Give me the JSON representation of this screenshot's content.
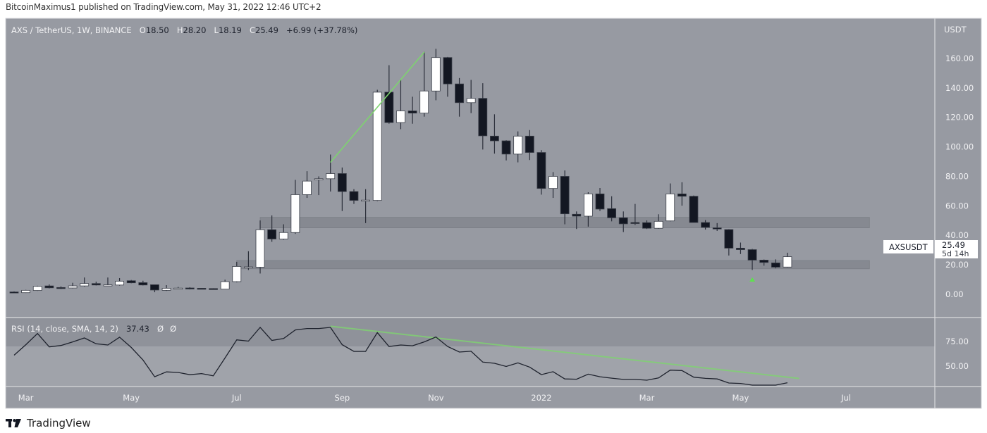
{
  "publish_line": "BitcoinMaximus1 published on TradingView.com, May 31, 2022 12:46 UTC+2",
  "legend": {
    "symbol": "AXS / TetherUS, 1W, BINANCE",
    "o_label": "O",
    "o": "18.50",
    "h_label": "H",
    "h": "28.20",
    "l_label": "L",
    "l": "18.19",
    "c_label": "C",
    "c": "25.49",
    "change": "+6.99 (+37.78%)"
  },
  "price_axis": {
    "currency": "USDT",
    "ticks": [
      "160.00",
      "140.00",
      "120.00",
      "100.00",
      "80.00",
      "60.00",
      "40.00",
      "20.00",
      "0.00"
    ],
    "symbol_tag": "AXSUSDT",
    "last_price": "25.49",
    "countdown": "5d 14h"
  },
  "rsi": {
    "legend": "RSI (14, close, SMA, 14, 2)",
    "value": "37.43",
    "extra1": "Ø",
    "extra2": "Ø",
    "ticks": [
      "75.00",
      "50.00"
    ]
  },
  "time_axis": {
    "labels": [
      {
        "text": "Mar",
        "date": "2021-03-01"
      },
      {
        "text": "May",
        "date": "2021-05-03"
      },
      {
        "text": "Jul",
        "date": "2021-07-05"
      },
      {
        "text": "Sep",
        "date": "2021-09-06"
      },
      {
        "text": "Nov",
        "date": "2021-11-01"
      },
      {
        "text": "2022",
        "date": "2022-01-03"
      },
      {
        "text": "Mar",
        "date": "2022-03-07"
      },
      {
        "text": "May",
        "date": "2022-05-02"
      },
      {
        "text": "Jul",
        "date": "2022-07-04"
      }
    ]
  },
  "footer": {
    "brand": "TradingView",
    "logo_text": "TV"
  },
  "colors": {
    "background": "#979aa2",
    "up_body": "#ffffff",
    "down_body": "#131722",
    "wick": "#2a2e39",
    "zone": "#80838b",
    "trendline": "#7ed36f",
    "rsi_line": "#1e222d"
  },
  "chart_data": [
    {
      "type": "candlestick",
      "interval": "1W",
      "ylim": [
        0,
        170
      ],
      "grid": false,
      "columns": [
        "date",
        "open",
        "high",
        "low",
        "close"
      ],
      "candles": [
        [
          "2021-02-22",
          1.6,
          2.0,
          1.0,
          1.3
        ],
        [
          "2021-03-01",
          1.1,
          3.0,
          0.9,
          2.7
        ],
        [
          "2021-03-08",
          2.6,
          5.8,
          2.3,
          5.4
        ],
        [
          "2021-03-15",
          5.7,
          6.7,
          4.0,
          4.4
        ],
        [
          "2021-03-22",
          4.6,
          5.4,
          3.6,
          4.5
        ],
        [
          "2021-03-29",
          4.3,
          7.8,
          4.0,
          5.7
        ],
        [
          "2021-04-05",
          5.7,
          11.4,
          5.2,
          7.3
        ],
        [
          "2021-04-12",
          7.3,
          8.6,
          6.0,
          6.3
        ],
        [
          "2021-04-19",
          6.3,
          11.4,
          5.9,
          6.4
        ],
        [
          "2021-04-26",
          6.3,
          11.0,
          5.9,
          8.9
        ],
        [
          "2021-05-03",
          9.2,
          9.7,
          7.5,
          7.8
        ],
        [
          "2021-05-10",
          7.9,
          9.2,
          6.0,
          6.3
        ],
        [
          "2021-05-17",
          6.5,
          6.5,
          1.4,
          2.9
        ],
        [
          "2021-05-24",
          2.7,
          6.2,
          2.3,
          4.1
        ],
        [
          "2021-05-31",
          4.1,
          5.0,
          3.8,
          4.2
        ],
        [
          "2021-06-07",
          4.3,
          4.8,
          3.3,
          3.7
        ],
        [
          "2021-06-14",
          4.1,
          4.3,
          3.6,
          3.8
        ],
        [
          "2021-06-21",
          3.9,
          4.1,
          3.2,
          3.3
        ],
        [
          "2021-06-28",
          3.5,
          9.9,
          3.4,
          8.6
        ],
        [
          "2021-07-05",
          8.6,
          22.0,
          8.1,
          18.9
        ],
        [
          "2021-07-12",
          18.4,
          29.2,
          16.5,
          18.6
        ],
        [
          "2021-07-19",
          18.4,
          50.1,
          14.1,
          43.8
        ],
        [
          "2021-07-26",
          43.8,
          53.5,
          35.6,
          37.5
        ],
        [
          "2021-08-02",
          37.5,
          47.5,
          37.0,
          41.9
        ],
        [
          "2021-08-09",
          41.9,
          77.6,
          41.0,
          67.6
        ],
        [
          "2021-08-16",
          67.6,
          83.5,
          65.4,
          76.8
        ],
        [
          "2021-08-23",
          77.6,
          80.0,
          67.3,
          78.4
        ],
        [
          "2021-08-30",
          78.4,
          94.8,
          69.7,
          81.9
        ],
        [
          "2021-09-06",
          81.9,
          86.0,
          56.5,
          69.7
        ],
        [
          "2021-09-13",
          69.7,
          71.3,
          61.3,
          63.7
        ],
        [
          "2021-09-20",
          63.7,
          71.3,
          48.3,
          63.9
        ],
        [
          "2021-09-27",
          63.7,
          138.7,
          63.2,
          137.1
        ],
        [
          "2021-10-04",
          137.1,
          155.4,
          115.7,
          116.5
        ],
        [
          "2021-10-11",
          116.5,
          146.0,
          112.0,
          124.4
        ],
        [
          "2021-10-18",
          124.4,
          134.0,
          115.7,
          122.9
        ],
        [
          "2021-10-25",
          122.9,
          164.4,
          120.5,
          137.9
        ],
        [
          "2021-11-01",
          137.9,
          166.5,
          131.6,
          160.6
        ],
        [
          "2021-11-08",
          160.6,
          161.0,
          134.0,
          142.7
        ],
        [
          "2021-11-15",
          142.7,
          146.7,
          120.5,
          130.0
        ],
        [
          "2021-11-22",
          130.0,
          145.4,
          122.9,
          132.9
        ],
        [
          "2021-11-29",
          132.9,
          143.2,
          98.2,
          107.5
        ],
        [
          "2021-12-06",
          107.3,
          122.1,
          95.4,
          104.1
        ],
        [
          "2021-12-13",
          104.1,
          104.5,
          90.8,
          95.1
        ],
        [
          "2021-12-20",
          95.1,
          110.5,
          89.5,
          107.3
        ],
        [
          "2021-12-27",
          107.3,
          111.4,
          91.1,
          96.2
        ],
        [
          "2022-01-03",
          96.2,
          97.8,
          67.6,
          71.8
        ],
        [
          "2022-01-10",
          71.8,
          82.9,
          65.4,
          80.0
        ],
        [
          "2022-01-17",
          80.0,
          84.0,
          47.5,
          54.6
        ],
        [
          "2022-01-24",
          54.3,
          56.2,
          44.3,
          53.0
        ],
        [
          "2022-01-31",
          53.0,
          69.2,
          45.9,
          68.1
        ],
        [
          "2022-02-07",
          68.1,
          72.1,
          56.5,
          57.8
        ],
        [
          "2022-02-14",
          58.1,
          66.5,
          49.5,
          51.9
        ],
        [
          "2022-02-21",
          51.9,
          56.2,
          42.2,
          47.8
        ],
        [
          "2022-02-28",
          48.7,
          61.3,
          47.0,
          48.0
        ],
        [
          "2022-03-07",
          48.6,
          50.1,
          44.3,
          44.8
        ],
        [
          "2022-03-14",
          44.8,
          54.3,
          44.5,
          49.5
        ],
        [
          "2022-03-21",
          49.8,
          75.2,
          49.5,
          68.1
        ],
        [
          "2022-03-28",
          68.1,
          76.0,
          60.1,
          66.5
        ],
        [
          "2022-04-04",
          66.5,
          67.0,
          48.7,
          48.7
        ],
        [
          "2022-04-11",
          48.7,
          50.3,
          43.9,
          45.4
        ],
        [
          "2022-04-18",
          45.1,
          48.3,
          43.0,
          44.3
        ],
        [
          "2022-04-25",
          43.9,
          44.2,
          26.3,
          31.3
        ],
        [
          "2022-05-02",
          31.3,
          35.1,
          27.3,
          30.3
        ],
        [
          "2022-05-09",
          30.3,
          30.8,
          16.5,
          23.2
        ],
        [
          "2022-05-16",
          23.2,
          23.6,
          19.4,
          21.6
        ],
        [
          "2022-05-23",
          21.3,
          23.7,
          17.6,
          18.4
        ],
        [
          "2022-05-30",
          18.5,
          28.2,
          18.19,
          25.49
        ]
      ],
      "zones": [
        {
          "from": "2021-07-19",
          "to": "2022-07-18",
          "low": 45.1,
          "high": 52.2
        },
        {
          "from": "2021-07-05",
          "to": "2022-07-18",
          "low": 17.3,
          "high": 22.9
        }
      ],
      "trendline": {
        "from": [
          "2021-08-30",
          89.5
        ],
        "to": [
          "2021-10-25",
          164.3
        ]
      },
      "marker": {
        "date": "2022-05-09",
        "value": 10,
        "shape": "arrow-up"
      }
    },
    {
      "type": "line",
      "ylim": [
        33,
        95
      ],
      "band": [
        30,
        70
      ],
      "x_start": "2021-02-22",
      "interval": "1W",
      "values": [
        62.1,
        71.5,
        81.5,
        69.5,
        70.8,
        74.0,
        77.5,
        72.3,
        71.2,
        78.2,
        69.0,
        57.8,
        42.8,
        47.1,
        46.6,
        44.6,
        45.6,
        43.6,
        59.6,
        75.8,
        74.7,
        87.0,
        75.3,
        77.0,
        84.7,
        86.0,
        86.0,
        87.0,
        71.5,
        65.5,
        65.5,
        82.3,
        69.8,
        71.2,
        70.5,
        74.0,
        78.4,
        69.9,
        64.9,
        65.6,
        55.9,
        54.8,
        52.0,
        55.2,
        51.4,
        44.7,
        47.3,
        40.8,
        40.6,
        45.1,
        42.8,
        41.5,
        40.4,
        40.4,
        39.7,
        41.7,
        48.7,
        48.3,
        42.4,
        41.3,
        40.8,
        37.2,
        36.8,
        34.7,
        34.3,
        33.4,
        37.43
      ],
      "trendline": {
        "from": [
          "2021-08-30",
          88.0
        ],
        "to": [
          "2022-06-06",
          41.3
        ]
      }
    }
  ]
}
